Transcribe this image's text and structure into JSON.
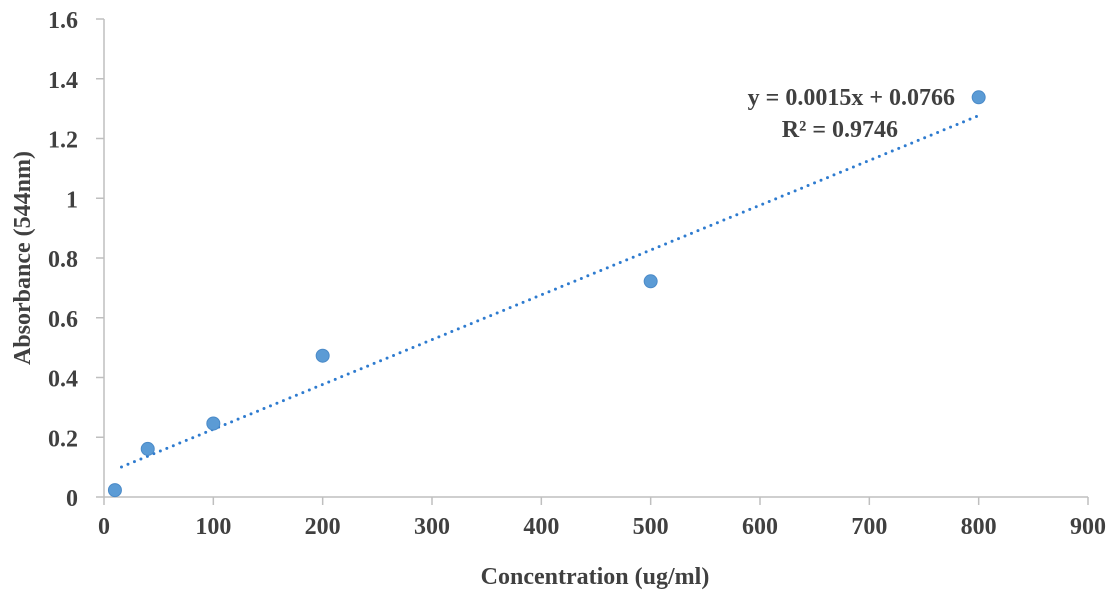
{
  "chart_data": {
    "type": "scatter",
    "title": "",
    "xlabel": "Concentration (ug/ml)",
    "ylabel": "Absorbance (544nm)",
    "xlim": [
      0,
      900
    ],
    "ylim": [
      0,
      1.6
    ],
    "xticks": [
      0,
      100,
      200,
      300,
      400,
      500,
      600,
      700,
      800,
      900
    ],
    "yticks": [
      "0",
      "0.2",
      "0.4",
      "0.6",
      "0.8",
      "1",
      "1.2",
      "1.4",
      "1.6"
    ],
    "grid": false,
    "series": [
      {
        "name": "Absorbance",
        "color": "#5B9BD5",
        "points": [
          [
            10,
            0.023
          ],
          [
            40,
            0.161
          ],
          [
            100,
            0.246
          ],
          [
            200,
            0.473
          ],
          [
            500,
            0.722
          ],
          [
            800,
            1.338
          ]
        ]
      }
    ],
    "trendline": {
      "type": "linear",
      "slope": 0.0015,
      "intercept": 0.0766,
      "x_range": [
        16,
        800
      ],
      "color": "#2E7BCF",
      "equation": "y = 0.0015x + 0.0766",
      "r_squared": "R² = 0.9746"
    }
  }
}
